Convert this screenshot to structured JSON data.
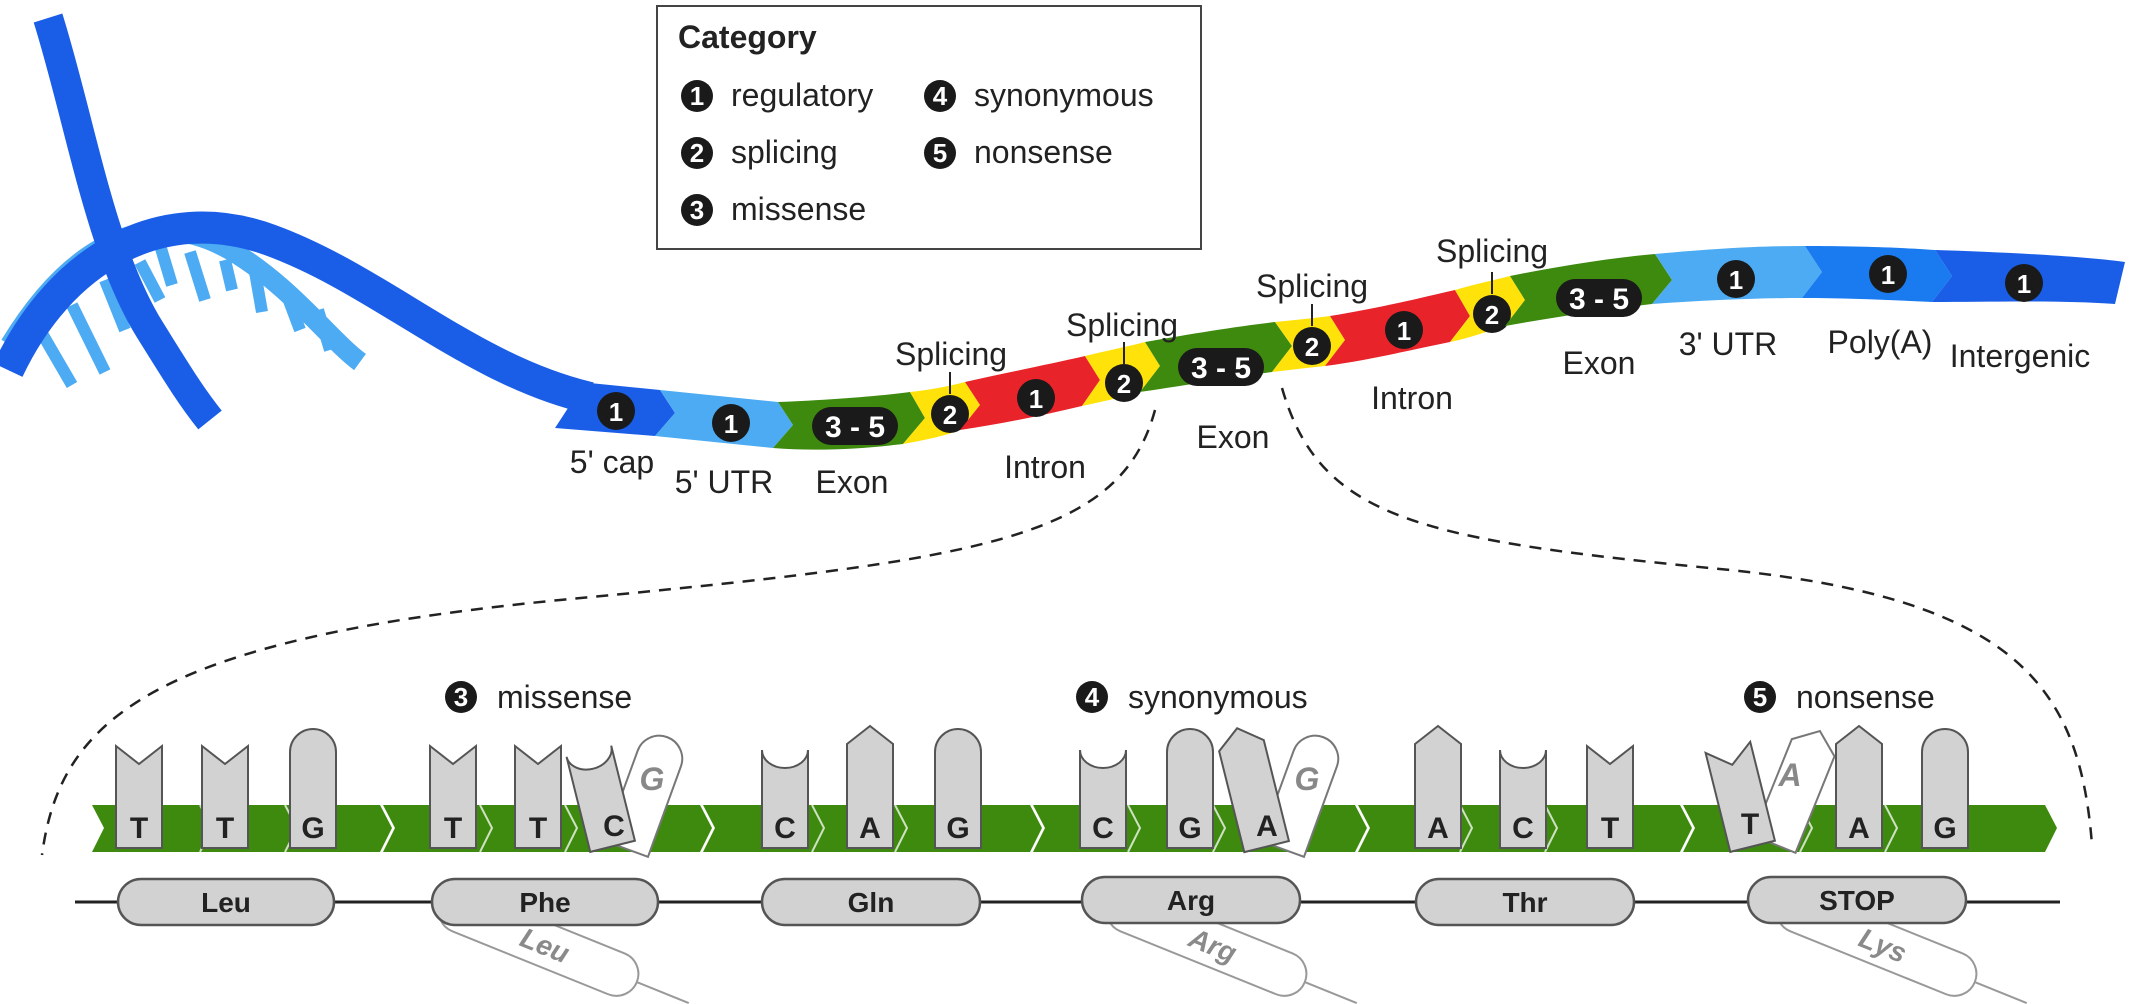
{
  "legend": {
    "title": "Category",
    "items": [
      {
        "num": "1",
        "label": "regulatory"
      },
      {
        "num": "2",
        "label": "splicing"
      },
      {
        "num": "3",
        "label": "missense"
      },
      {
        "num": "4",
        "label": "synonymous"
      },
      {
        "num": "5",
        "label": "nonsense"
      }
    ]
  },
  "colors": {
    "dna_blue": "#1a5ee8",
    "light_blue": "#4cabf2",
    "exon_green": "#3e8a0f",
    "intron_red": "#e8242a",
    "splice_yellow": "#ffe20a",
    "badge_black": "#1a1a1a",
    "nucleotide_gray": "#d2d2d2"
  },
  "strand": {
    "segments": [
      {
        "name": "5-cap",
        "num": "1",
        "label": "5' cap"
      },
      {
        "name": "5-utr",
        "num": "1",
        "label": "5' UTR"
      },
      {
        "name": "exon-1",
        "num": "3 - 5",
        "label": "Exon"
      },
      {
        "name": "splice-1",
        "num": "2",
        "label": "Splicing"
      },
      {
        "name": "intron-1",
        "num": "1",
        "label": "Intron"
      },
      {
        "name": "splice-2",
        "num": "2",
        "label": "Splicing"
      },
      {
        "name": "exon-2",
        "num": "3 - 5",
        "label": "Exon"
      },
      {
        "name": "splice-3",
        "num": "2",
        "label": "Splicing"
      },
      {
        "name": "intron-2",
        "num": "1",
        "label": "Intron"
      },
      {
        "name": "splice-4",
        "num": "2",
        "label": "Splicing"
      },
      {
        "name": "exon-3",
        "num": "3 - 5",
        "label": "Exon"
      },
      {
        "name": "3-utr",
        "num": "1",
        "label": "3' UTR"
      },
      {
        "name": "poly-a",
        "num": "1",
        "label": "Poly(A)"
      },
      {
        "name": "intergenic",
        "num": "1",
        "label": "Intergenic"
      }
    ]
  },
  "codons": [
    {
      "bases": [
        "T",
        "T",
        "G"
      ],
      "amino_acid": "Leu"
    },
    {
      "bases": [
        "T",
        "T",
        "C"
      ],
      "alt_base": "G",
      "amino_acid": "Phe",
      "alt_amino_acid": "Leu",
      "mutation": {
        "num": "3",
        "label": "missense"
      }
    },
    {
      "bases": [
        "C",
        "A",
        "G"
      ],
      "amino_acid": "Gln"
    },
    {
      "bases": [
        "C",
        "G",
        "A"
      ],
      "alt_base": "G",
      "amino_acid": "Arg",
      "alt_amino_acid": "Arg",
      "mutation": {
        "num": "4",
        "label": "synonymous"
      }
    },
    {
      "bases": [
        "A",
        "C",
        "T"
      ],
      "amino_acid": "Thr"
    },
    {
      "bases": [
        "T",
        "A",
        "G"
      ],
      "alt_base": "A",
      "amino_acid": "STOP",
      "alt_amino_acid": "Lys",
      "mutation": {
        "num": "5",
        "label": "nonsense"
      }
    }
  ]
}
